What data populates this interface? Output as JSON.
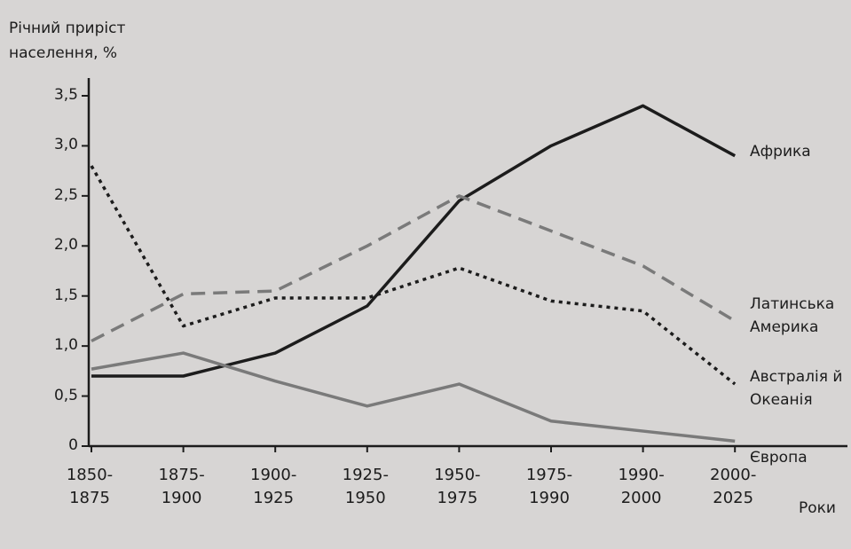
{
  "chart_data": {
    "type": "line",
    "y_axis_label": "Річний приріст населення, %",
    "x_axis_label": "Роки",
    "categories": [
      "1850-1875",
      "1875-1900",
      "1900-1925",
      "1925-1950",
      "1950-1975",
      "1975-1990",
      "1990-2000",
      "2000-2025"
    ],
    "series": [
      {
        "name": "Африка",
        "color": "#1c1c1c",
        "line_style": "solid",
        "values": [
          0.7,
          0.7,
          0.93,
          1.4,
          2.45,
          3.0,
          3.4,
          2.9
        ]
      },
      {
        "name": "Латинська Америка",
        "color": "#7a7a7a",
        "line_style": "dashed",
        "values": [
          1.05,
          1.52,
          1.55,
          2.0,
          2.5,
          2.15,
          1.8,
          1.25
        ]
      },
      {
        "name": "Австралія й Океанія",
        "color": "#1c1c1c",
        "line_style": "dotted",
        "values": [
          2.8,
          1.2,
          1.48,
          1.48,
          1.78,
          1.45,
          1.35,
          0.62
        ]
      },
      {
        "name": "Європа",
        "color": "#7a7a7a",
        "line_style": "solid",
        "values": [
          0.77,
          0.93,
          0.65,
          0.4,
          0.62,
          0.25,
          0.15,
          0.05
        ]
      }
    ],
    "ylim": [
      0,
      3.5
    ],
    "yticks": [
      0,
      {
        "value": 0.5,
        "label": "0,5"
      },
      {
        "value": 1.0,
        "label": "1,0"
      },
      {
        "value": 1.5,
        "label": "1,5"
      },
      {
        "value": 2.0,
        "label": "2,0"
      },
      {
        "value": 2.5,
        "label": "2,5"
      },
      {
        "value": 3.0,
        "label": "3,0"
      },
      {
        "value": 3.5,
        "label": "3,5"
      }
    ],
    "grid": false
  }
}
